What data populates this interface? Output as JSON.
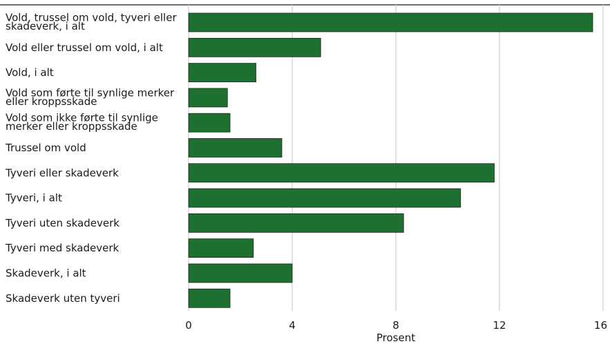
{
  "chart_data": {
    "type": "bar",
    "orientation": "horizontal",
    "categories": [
      [
        "Vold, trussel om vold, tyveri eller",
        "skadeverk, i alt"
      ],
      [
        "Vold eller trussel om vold, i alt"
      ],
      [
        "Vold, i alt"
      ],
      [
        "Vold som førte til synlige merker",
        "eller kroppsskade"
      ],
      [
        "Vold som ikke førte til synlige",
        "merker eller kroppsskade"
      ],
      [
        "Trussel om vold"
      ],
      [
        "Tyveri eller skadeverk"
      ],
      [
        "Tyveri, i alt"
      ],
      [
        "Tyveri uten skadeverk"
      ],
      [
        "Tyveri med skadeverk"
      ],
      [
        "Skadeverk, i alt"
      ],
      [
        "Skadeverk uten tyveri"
      ]
    ],
    "values": [
      15.6,
      5.1,
      2.6,
      1.5,
      1.6,
      3.6,
      11.8,
      10.5,
      8.3,
      2.5,
      4.0,
      1.6
    ],
    "xlabel": "Prosent",
    "xlim": [
      0,
      16
    ],
    "xticks": [
      "0",
      "4",
      "8",
      "12",
      "16"
    ],
    "tick_values": [
      0,
      4,
      8,
      12,
      16
    ],
    "grid": true,
    "bar_color": "#1e7030",
    "title": ""
  }
}
